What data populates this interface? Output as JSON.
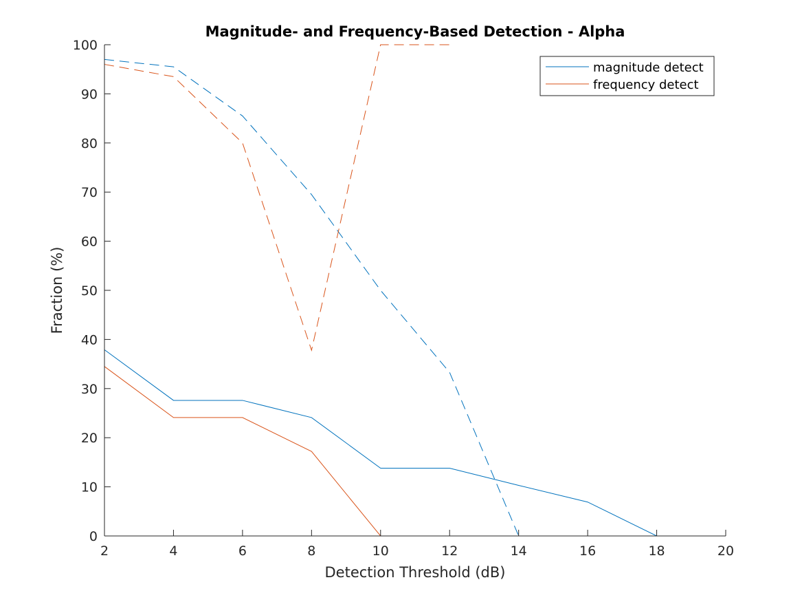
{
  "chart_data": {
    "type": "line",
    "title": "Magnitude- and Frequency-Based Detection - Alpha",
    "xlabel": "Detection Threshold (dB)",
    "ylabel": "Fraction (%)",
    "xlim": [
      2,
      20
    ],
    "ylim": [
      0,
      100
    ],
    "xticks": [
      2,
      4,
      6,
      8,
      10,
      12,
      14,
      16,
      18,
      20
    ],
    "yticks": [
      0,
      10,
      20,
      30,
      40,
      50,
      60,
      70,
      80,
      90,
      100
    ],
    "grid": false,
    "legend_position": "top-right",
    "legend": [
      {
        "label": "magnitude detect",
        "color": "#0072BD"
      },
      {
        "label": "frequency detect",
        "color": "#D95319"
      }
    ],
    "series": [
      {
        "name": "magnitude detect",
        "color": "#0072BD",
        "style": "solid",
        "x": [
          2,
          4,
          6,
          8,
          10,
          12,
          14,
          16,
          18,
          20
        ],
        "y": [
          37.9,
          27.6,
          27.6,
          24.1,
          13.8,
          13.8,
          10.3,
          6.9,
          0,
          0
        ]
      },
      {
        "name": "frequency detect",
        "color": "#D95319",
        "style": "solid",
        "x": [
          2,
          4,
          6,
          8,
          10,
          12,
          14,
          16,
          18,
          20
        ],
        "y": [
          34.5,
          24.1,
          24.1,
          17.2,
          0,
          0,
          0,
          0,
          0,
          0
        ]
      },
      {
        "color": "#0072BD",
        "style": "dashed",
        "x": [
          2,
          4,
          6,
          8,
          10,
          12,
          14
        ],
        "y": [
          97,
          95.5,
          85.5,
          69.5,
          50,
          33.3,
          0
        ]
      },
      {
        "color": "#D95319",
        "style": "dashed",
        "x": [
          2,
          4,
          6,
          8,
          10,
          12
        ],
        "y": [
          96,
          93.5,
          80,
          37.8,
          100,
          100
        ]
      }
    ]
  }
}
